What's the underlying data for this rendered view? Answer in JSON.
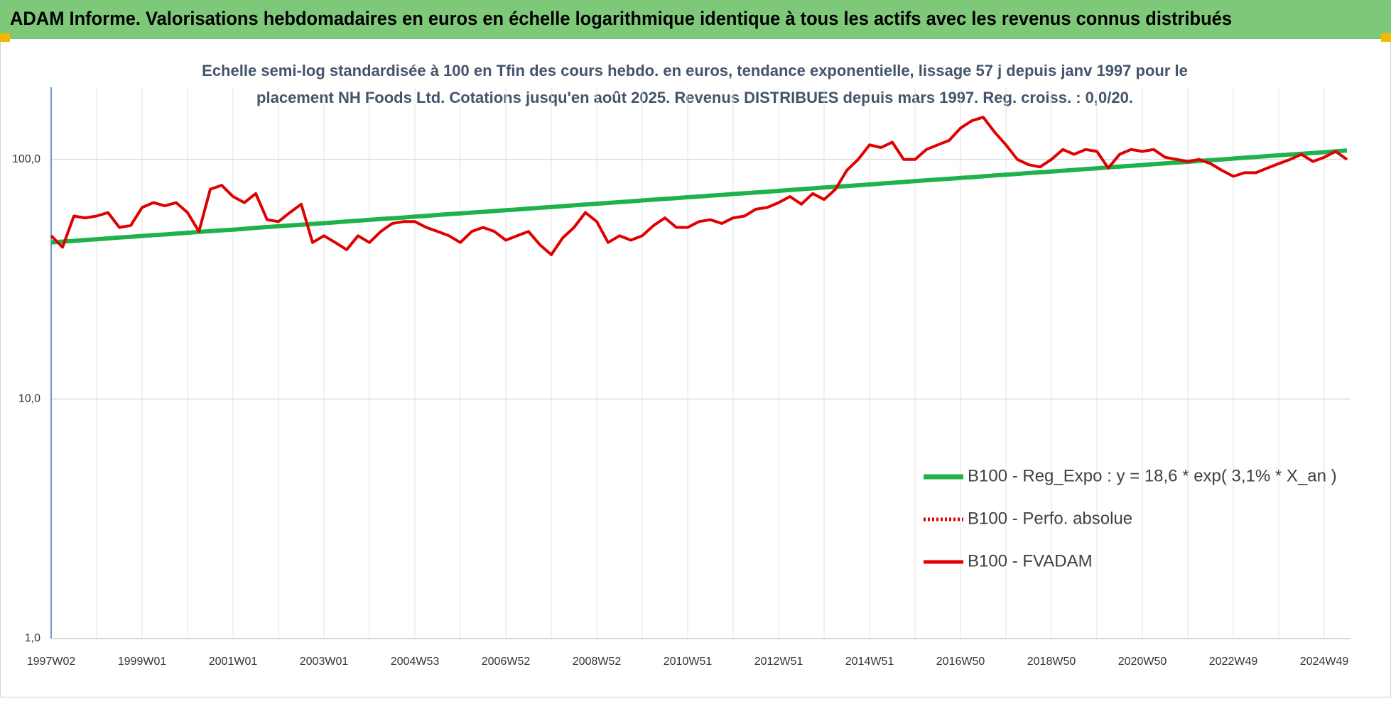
{
  "header": {
    "title": "ADAM Informe. Valorisations hebdomadaires en euros en échelle logarithmique identique à tous les actifs avec les revenus connus distribués"
  },
  "chart_data": {
    "type": "line",
    "title_lines": [
      "Echelle semi-log standardisée à 100 en Tfin des cours hebdo. en euros, tendance exponentielle, lissage 57 j depuis janv 1997 pour le",
      "placement NH Foods Ltd. Cotations jusqu'en août 2025.  Revenus DISTRIBUES depuis mars 1997. Reg. croiss. : 0,0/20."
    ],
    "categories": [
      "1997W02",
      null,
      null,
      null,
      null,
      null,
      null,
      null,
      "1999W01",
      null,
      null,
      null,
      null,
      null,
      null,
      null,
      "2001W01",
      null,
      null,
      null,
      null,
      null,
      null,
      null,
      "2003W01",
      null,
      null,
      null,
      null,
      null,
      null,
      null,
      "2004W53",
      null,
      null,
      null,
      null,
      null,
      null,
      null,
      "2006W52",
      null,
      null,
      null,
      null,
      null,
      null,
      null,
      "2008W52",
      null,
      null,
      null,
      null,
      null,
      null,
      null,
      "2010W51",
      null,
      null,
      null,
      null,
      null,
      null,
      null,
      "2012W51",
      null,
      null,
      null,
      null,
      null,
      null,
      null,
      "2014W51",
      null,
      null,
      null,
      null,
      null,
      null,
      null,
      "2016W50",
      null,
      null,
      null,
      null,
      null,
      null,
      null,
      "2018W50",
      null,
      null,
      null,
      null,
      null,
      null,
      null,
      "2020W50",
      null,
      null,
      null,
      null,
      null,
      null,
      null,
      "2022W49",
      null,
      null,
      null,
      null,
      null,
      null,
      null,
      "2024W49",
      null,
      null
    ],
    "series": [
      {
        "name": "B100 - Reg_Expo : y = 18,6 * exp( 3,1% *  X_an )",
        "color": "#1fb14b",
        "line_style": "solid",
        "width": 6,
        "values": [
          45.0,
          45.4,
          45.7,
          46.1,
          46.4,
          46.8,
          47.2,
          47.5,
          47.9,
          48.3,
          48.6,
          49.0,
          49.4,
          49.8,
          50.2,
          50.6,
          50.9,
          51.3,
          51.8,
          52.2,
          52.6,
          53.0,
          53.4,
          53.8,
          54.2,
          54.6,
          55.1,
          55.5,
          55.9,
          56.4,
          56.8,
          57.2,
          57.7,
          58.1,
          58.6,
          59.1,
          59.5,
          60.0,
          60.4,
          60.9,
          61.4,
          61.8,
          62.3,
          62.8,
          63.3,
          63.8,
          64.3,
          64.8,
          65.3,
          65.8,
          66.3,
          66.8,
          67.4,
          67.9,
          68.4,
          68.9,
          69.5,
          70.0,
          70.6,
          71.1,
          71.7,
          72.2,
          72.8,
          73.3,
          73.9,
          74.5,
          75.1,
          75.7,
          76.3,
          76.9,
          77.4,
          78.0,
          78.6,
          79.3,
          79.9,
          80.5,
          81.2,
          81.8,
          82.4,
          83.0,
          83.7,
          84.3,
          85.0,
          85.7,
          86.3,
          87.0,
          87.7,
          88.3,
          89.0,
          89.7,
          90.4,
          91.1,
          91.8,
          92.6,
          93.3,
          94.0,
          94.7,
          95.5,
          96.2,
          97.0,
          97.7,
          98.5,
          99.3,
          100.0,
          100.8,
          101.6,
          102.4,
          103.2,
          104.0,
          104.8,
          105.6,
          106.4,
          107.2,
          108.0,
          108.9
        ]
      },
      {
        "name": "B100 - Perfo. absolue",
        "color": "#e00000",
        "line_style": "dotted",
        "width": 4,
        "values": [
          null,
          null,
          null,
          null,
          null,
          null,
          null,
          null,
          null,
          null,
          null,
          null,
          null,
          null,
          null,
          null,
          null,
          null,
          null,
          null,
          null,
          null,
          null,
          null,
          null,
          null,
          null,
          null,
          null,
          null,
          null,
          null,
          null,
          null,
          null,
          null,
          null,
          null,
          null,
          null,
          null,
          null,
          null,
          null,
          null,
          null,
          null,
          null,
          null,
          null,
          null,
          null,
          null,
          null,
          null,
          null,
          null,
          null,
          null,
          null,
          null,
          null,
          null,
          null,
          null,
          null,
          null,
          null,
          null,
          null,
          null,
          null,
          null,
          null,
          null,
          null,
          null,
          null,
          null,
          null,
          null,
          null,
          null,
          null,
          null,
          null,
          null,
          null,
          null,
          null,
          null,
          null,
          null,
          null,
          null,
          null,
          null,
          null,
          null,
          null,
          null,
          null,
          null,
          null,
          null,
          null,
          null,
          null,
          null,
          null,
          null,
          null,
          null,
          null,
          null
        ]
      },
      {
        "name": "B100 - FVADAM",
        "color": "#e00000",
        "line_style": "solid",
        "width": 4,
        "values": [
          48,
          43,
          58,
          57,
          58,
          60,
          52,
          53,
          63,
          66,
          64,
          66,
          60,
          50,
          75,
          78,
          70,
          66,
          72,
          56,
          55,
          60,
          65,
          45,
          48,
          45,
          42,
          48,
          45,
          50,
          54,
          55,
          55,
          52,
          50,
          48,
          45,
          50,
          52,
          50,
          46,
          48,
          50,
          44,
          40,
          47,
          52,
          60,
          55,
          45,
          48,
          46,
          48,
          53,
          57,
          52,
          52,
          55,
          56,
          54,
          57,
          58,
          62,
          63,
          66,
          70,
          65,
          72,
          68,
          75,
          90,
          100,
          115,
          112,
          118,
          100,
          100,
          110,
          115,
          120,
          135,
          145,
          150,
          130,
          115,
          100,
          95,
          93,
          100,
          110,
          105,
          110,
          108,
          92,
          105,
          110,
          108,
          110,
          102,
          100,
          98,
          100,
          96,
          90,
          85,
          88,
          88,
          92,
          96,
          100,
          105,
          98,
          102,
          108,
          100
        ]
      }
    ],
    "log_scale": true,
    "ylim": [
      1,
      200
    ],
    "yticks": [
      {
        "value": 1,
        "label": "1,0"
      },
      {
        "value": 10,
        "label": "10,0"
      },
      {
        "value": 100,
        "label": "100,0"
      }
    ],
    "grid": true,
    "legend_position": "lower right"
  }
}
